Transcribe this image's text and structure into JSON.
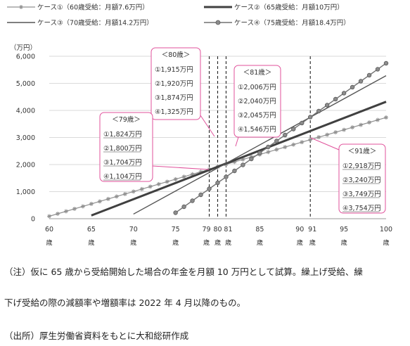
{
  "chart_data": {
    "type": "line",
    "xlim": [
      60,
      100
    ],
    "ylim": [
      0,
      6000
    ],
    "y_unit": "（万円）",
    "y_ticks": [
      0,
      1000,
      2000,
      3000,
      4000,
      5000,
      6000
    ],
    "y_tick_labels": [
      "0",
      "1,000",
      "2,000",
      "3,000",
      "4,000",
      "5,000",
      "6,000"
    ],
    "x_tick_labels": [
      {
        "x": 60,
        "num": "60",
        "unit": "歳"
      },
      {
        "x": 65,
        "num": "65",
        "unit": "歳"
      },
      {
        "x": 70,
        "num": "70",
        "unit": "歳"
      },
      {
        "x": 75,
        "num": "75",
        "unit": "歳"
      },
      {
        "x": 79,
        "num": "79",
        "unit": "歳"
      },
      {
        "x": 80,
        "num": "80",
        "unit": "歳"
      },
      {
        "x": 81,
        "num": "81",
        "unit": "歳"
      },
      {
        "x": 85,
        "num": "85",
        "unit": "歳"
      },
      {
        "x": 90,
        "num": "90",
        "unit": "歳"
      },
      {
        "x": 91,
        "num": "91",
        "unit": "歳"
      },
      {
        "x": 95,
        "num": "95",
        "unit": "歳"
      },
      {
        "x": 100,
        "num": "100",
        "unit": "歳"
      }
    ],
    "vlines": [
      79,
      80,
      81,
      91
    ],
    "series": [
      {
        "name": "ケース①（60歳受給：月額7.6万円）",
        "start": 60,
        "per_year": 91.2,
        "color": "#909090",
        "marker": "star",
        "width": 1.2
      },
      {
        "name": "ケース②（65歳受給：月額10万円）",
        "start": 65,
        "per_year": 120,
        "color": "#404040",
        "marker": "none",
        "width": 3
      },
      {
        "name": "ケース③（70歳受給：月額14.2万円）",
        "start": 70,
        "per_year": 170.4,
        "color": "#555555",
        "marker": "none",
        "width": 1.4
      },
      {
        "name": "ケース④（75歳受給：月額18.4万円）",
        "start": 75,
        "per_year": 220.8,
        "color": "#707070",
        "marker": "circle",
        "width": 1.4
      }
    ],
    "callouts": [
      {
        "title": "＜80歳＞",
        "lines": [
          "①1,915万円",
          "②1,920万円",
          "③1,874万円",
          "④1,325万円"
        ],
        "underline": false
      },
      {
        "title": "＜81歳＞",
        "lines": [
          "①2,006万円",
          "②2,040万円",
          "③2,045万円",
          "④1,546万円"
        ],
        "underline": false
      },
      {
        "title": "＜79歳＞",
        "lines": [
          "①1,824万円",
          "②1,800万円",
          "③1,704万円",
          "④1,104万円"
        ],
        "underline": true
      },
      {
        "title": "＜91歳＞",
        "lines": [
          "①2,918万円",
          "②3,240万円",
          "③3,749万円",
          "④3,754万円"
        ],
        "underline": true
      }
    ]
  },
  "notes": {
    "note1": "（注）仮に 65 歳から受給開始した場合の年金を月額 10 万円として試算。繰上げ受給、繰",
    "note2": "下げ受給の際の減額率や増額率は 2022 年 4 月以降のもの。",
    "source": "（出所）厚生労働省資料をもとに大和総研作成"
  }
}
